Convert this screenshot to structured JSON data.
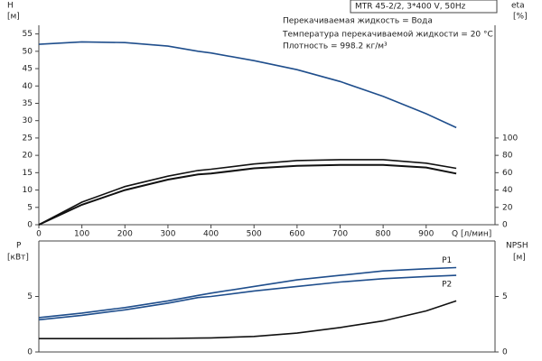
{
  "header": "MTR 45-2/2, 3*400 V, 50Hz",
  "annotations": [
    "Перекачиваемая жидкость = Вода",
    "Температура перекачиваемой жидкости = 20 °C",
    "Плотность = 998.2 кг/м³"
  ],
  "chart_data": [
    {
      "type": "line",
      "ylabel": "H",
      "yunit": "[м]",
      "y2label": "eta",
      "y2unit": "[%]",
      "xlabel": "Q [л/мин]",
      "x": [
        0,
        100,
        200,
        300,
        370,
        400,
        500,
        600,
        700,
        800,
        900,
        970
      ],
      "xlim": [
        0,
        1060
      ],
      "xticks": [
        0,
        100,
        200,
        300,
        400,
        500,
        600,
        700,
        800,
        900
      ],
      "ylim": [
        0,
        57.5
      ],
      "yticks": [
        0,
        5,
        10,
        15,
        20,
        25,
        30,
        35,
        40,
        45,
        50,
        55
      ],
      "y2lim": [
        0,
        230
      ],
      "y2ticks": [
        0,
        20,
        40,
        60,
        80,
        100
      ],
      "series": [
        {
          "color": "#1f4e8c",
          "values": [
            52,
            52.7,
            52.5,
            51.5,
            50,
            49.5,
            47.3,
            44.7,
            41.3,
            37,
            32,
            28
          ]
        },
        {
          "color": "#111111",
          "axis": "y2",
          "values": [
            0,
            26,
            44,
            56,
            62.5,
            64,
            70,
            74,
            75,
            75,
            71,
            65
          ]
        },
        {
          "color": "#111111",
          "axis": "y2",
          "values": [
            0,
            23,
            40,
            52,
            58,
            59,
            65,
            68,
            69,
            69,
            66,
            59
          ]
        }
      ]
    },
    {
      "type": "line",
      "ylabel": "P",
      "yunit": "[кВт]",
      "y2label": "NPSH",
      "y2unit": "[м]",
      "x": [
        0,
        100,
        200,
        300,
        370,
        400,
        500,
        600,
        700,
        800,
        900,
        970
      ],
      "xlim": [
        0,
        1060
      ],
      "ylim": [
        0,
        10
      ],
      "yticks": [
        0,
        5
      ],
      "y2lim": [
        0,
        10
      ],
      "y2ticks": [
        0,
        5
      ],
      "series": [
        {
          "name": "P1",
          "color": "#1f4e8c",
          "values": [
            3.1,
            3.5,
            4.0,
            4.6,
            5.1,
            5.3,
            5.9,
            6.5,
            6.9,
            7.3,
            7.5,
            7.6
          ]
        },
        {
          "name": "P2",
          "color": "#1f4e8c",
          "values": [
            2.9,
            3.3,
            3.8,
            4.4,
            4.9,
            5.0,
            5.5,
            5.9,
            6.3,
            6.6,
            6.8,
            6.9
          ]
        },
        {
          "color": "#111111",
          "axis": "y2",
          "values": [
            1.2,
            1.2,
            1.2,
            1.22,
            1.25,
            1.27,
            1.4,
            1.7,
            2.2,
            2.8,
            3.7,
            4.6
          ]
        }
      ]
    }
  ]
}
